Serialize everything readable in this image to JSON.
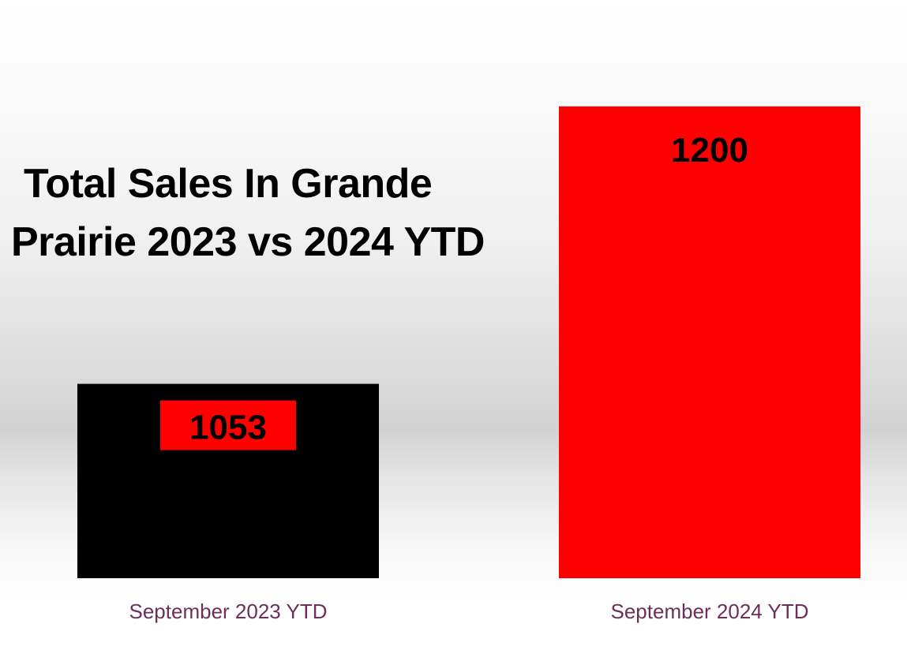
{
  "chart_data": {
    "type": "bar",
    "title": "Total Sales In Grande\nPrairie 2023 vs 2024 YTD",
    "categories": [
      "September 2023 YTD",
      "September 2024 YTD"
    ],
    "values": [
      1053,
      1200
    ],
    "bar_colors": [
      "#000000",
      "#ff0000"
    ],
    "label_box_colors": [
      "#ff0000",
      null
    ],
    "category_label_color": "#6b2f5a",
    "data_label_color": "#000000",
    "ylim": [
      950,
      1210
    ],
    "grid": false,
    "legend": "none"
  }
}
